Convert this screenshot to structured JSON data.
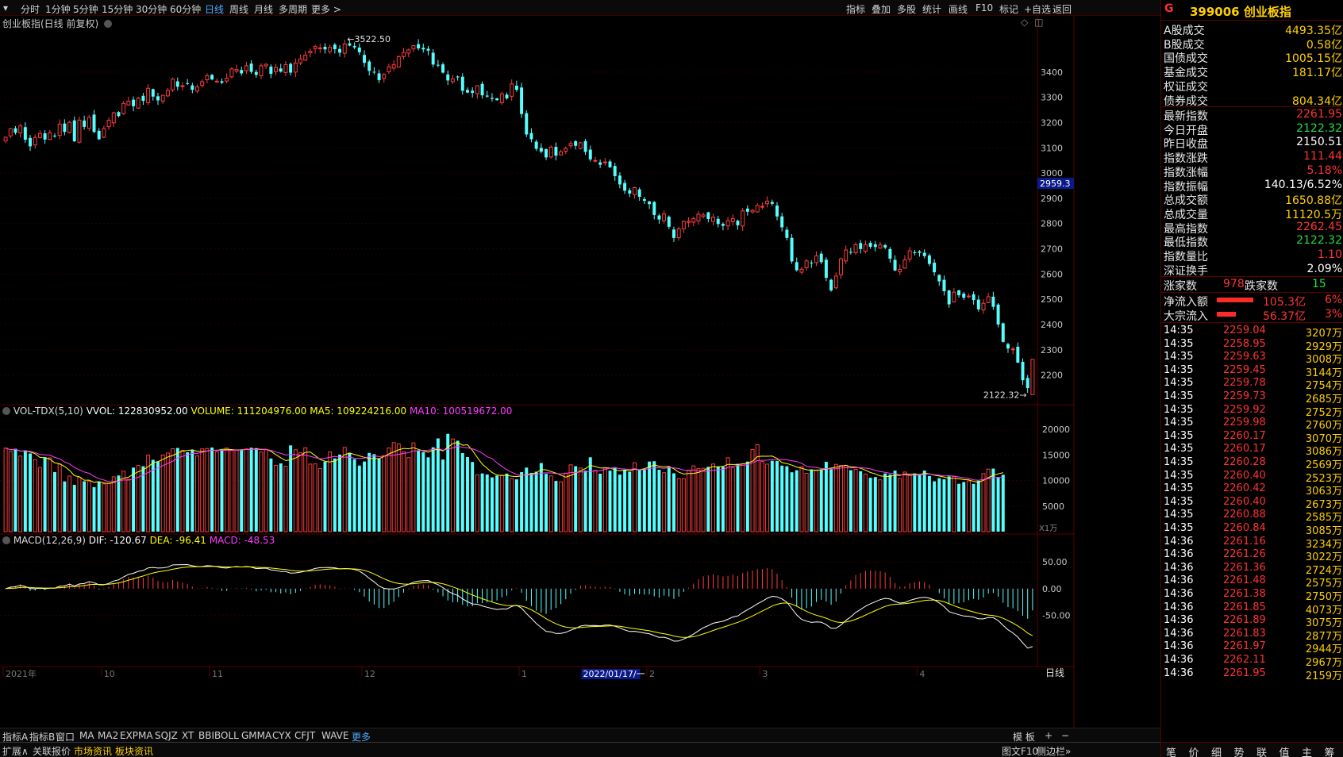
{
  "toolbar": {
    "timeframes": [
      "分时",
      "1分钟",
      "5分钟",
      "15分钟",
      "30分钟",
      "60分钟",
      "日线",
      "周线",
      "月线",
      "多周期",
      "更多 >"
    ],
    "active_timeframe": "日线",
    "tools": [
      "指标",
      "叠加",
      "多股",
      "统计",
      "画线",
      "F10",
      "标记",
      "+自选",
      "返回"
    ]
  },
  "chart_header": {
    "title": "创业板指(日线 前复权)"
  },
  "chart_data": [
    {
      "type": "candlestick",
      "title": "创业板指(日线 前复权)",
      "y_ticks": [
        3400,
        3300,
        3200,
        3100,
        3000,
        2900,
        2800,
        2700,
        2600,
        2500,
        2400,
        2300,
        2200
      ],
      "ylim": [
        2120,
        3560
      ],
      "current_price_tag": "2959.3",
      "annotations": {
        "high_label": "3522.50",
        "low_label": "2122.32"
      },
      "x_labels": [
        {
          "index": 0,
          "label": "2021年"
        },
        {
          "index": 20,
          "label": "10"
        },
        {
          "index": 42,
          "label": "11"
        },
        {
          "index": 73,
          "label": "12"
        },
        {
          "index": 105,
          "label": "1"
        },
        {
          "index": 118,
          "label": "2022/01/17/一"
        },
        {
          "index": 131,
          "label": "2"
        },
        {
          "index": 154,
          "label": "3"
        },
        {
          "index": 186,
          "label": "4"
        }
      ],
      "closes": [
        3142,
        3176,
        3160,
        3187,
        3132,
        3106,
        3141,
        3157,
        3133,
        3159,
        3147,
        3194,
        3163,
        3201,
        3126,
        3210,
        3183,
        3221,
        3163,
        3134,
        3176,
        3209,
        3239,
        3226,
        3276,
        3285,
        3265,
        3297,
        3286,
        3336,
        3303,
        3288,
        3308,
        3328,
        3372,
        3342,
        3346,
        3353,
        3330,
        3341,
        3362,
        3386,
        3371,
        3364,
        3358,
        3376,
        3413,
        3410,
        3395,
        3425,
        3401,
        3389,
        3425,
        3431,
        3393,
        3419,
        3402,
        3430,
        3398,
        3436,
        3452,
        3467,
        3483,
        3501,
        3496,
        3490,
        3498,
        3491,
        3477,
        3512,
        3505,
        3498,
        3479,
        3437,
        3405,
        3401,
        3368,
        3391,
        3421,
        3429,
        3461,
        3478,
        3488,
        3505,
        3494,
        3490,
        3485,
        3430,
        3429,
        3398,
        3367,
        3373,
        3379,
        3326,
        3319,
        3318,
        3346,
        3308,
        3303,
        3294,
        3289,
        3314,
        3296,
        3353,
        3330,
        3234,
        3153,
        3134,
        3096,
        3085,
        3062,
        3103,
        3069,
        3084,
        3098,
        3117,
        3108,
        3120,
        3084,
        3054,
        3050,
        3033,
        3044,
        3023,
        2988,
        2955,
        2930,
        2919,
        2942,
        2906,
        2890,
        2877,
        2834,
        2816,
        2838,
        2787,
        2743,
        2779,
        2808,
        2809,
        2820,
        2837,
        2834,
        2818,
        2825,
        2798,
        2791,
        2811,
        2820,
        2793,
        2850,
        2847,
        2852,
        2872,
        2868,
        2889,
        2878,
        2828,
        2785,
        2743,
        2650,
        2615,
        2619,
        2652,
        2644,
        2672,
        2647,
        2585,
        2535,
        2592,
        2660,
        2695,
        2686,
        2716,
        2699,
        2716,
        2708,
        2707,
        2715,
        2705,
        2661,
        2614,
        2618,
        2656,
        2692,
        2683,
        2684,
        2671,
        2640,
        2607,
        2571,
        2532,
        2480,
        2528,
        2516,
        2506,
        2513,
        2497,
        2460,
        2484,
        2510,
        2470,
        2400,
        2331,
        2305,
        2303,
        2249,
        2179,
        2148,
        2262
      ],
      "volume_panel": {
        "title": "VOL-TDX(5,10)",
        "vvol_label": "VVOL: 122830952.00",
        "volume_label": "VOLUME: 111204976.00",
        "ma5_label": "MA5: 109224216.00",
        "ma10_label": "MA10: 100519672.00",
        "y_ticks": [
          20000,
          15000,
          10000,
          5000
        ],
        "unit": "X1万",
        "values": [
          16340,
          15680,
          16210,
          14780,
          15900,
          15290,
          14080,
          12520,
          14560,
          14430,
          11650,
          13200,
          9820,
          10870,
          9150,
          10640,
          9850,
          9870,
          8710,
          9790,
          9340,
          9440,
          10720,
          10980,
          11830,
          10250,
          12520,
          12940,
          12790,
          14960,
          14040,
          13760,
          14980,
          15380,
          16210,
          16370,
          15910,
          15510,
          16000,
          14800,
          16190,
          16260,
          16460,
          15630,
          15930,
          16350,
          15870,
          16000,
          15990,
          16170,
          16410,
          16330,
          15560,
          16030,
          14300,
          12980,
          13340,
          12790,
          16870,
          16010,
          15420,
          16390,
          13210,
          13250,
          12350,
          13700,
          15600,
          14320,
          15070,
          16470,
          15430,
          14180,
          12920,
          13710,
          15400,
          15150,
          14220,
          14880,
          16360,
          17400,
          17150,
          15620,
          14470,
          17350,
          15830,
          15540,
          14530,
          16490,
          18230,
          14110,
          19130,
          18120,
          17780,
          15360,
          14590,
          13620,
          11110,
          11380,
          11180,
          10610,
          10960,
          10940,
          11350,
          10350,
          10230,
          11630,
          12520,
          11470,
          11720,
          13410,
          11300,
          10900,
          9910,
          9730,
          11440,
          13060,
          12800,
          12440,
          11930,
          14540,
          11970,
          11330,
          12530,
          11930,
          12600,
          11150,
          12060,
          11690,
          13470,
          12110,
          12240,
          13710,
          13770,
          12100,
          11530,
          12660,
          11410,
          10390,
          10370,
          11930,
          12860,
          12350,
          12390,
          12680,
          13230,
          12750,
          12700,
          14450,
          12500,
          13260,
          13290,
          13700,
          16050,
          17000,
          13730,
          13200,
          13860,
          13830,
          12910,
          12790,
          11610,
          12000,
          12680,
          11410,
          12180,
          11920,
          12200,
          13650,
          12170,
          13160,
          12930,
          12930,
          12030,
          12190,
          11810,
          11270,
          10540,
          10670,
          10140,
          11380,
          11160,
          11930,
          10390,
          11660,
          10940,
          11370,
          11280,
          11950,
          10880,
          9850,
          10460,
          10240,
          10810,
          10790,
          9360,
          9700,
          9900,
          9340,
          9950,
          11340,
          12230,
          12330,
          10670,
          11120
        ]
      },
      "macd_panel": {
        "title": "MACD(12,26,9)",
        "dif_label": "DIF: -120.67",
        "dea_label": "DEA: -96.41",
        "macd_label": "MACD: -48.53",
        "y_ticks": [
          "50.00",
          "0.00",
          "-50.00"
        ]
      },
      "colors": {
        "up": "#ff3c3c",
        "down": "#54ffff",
        "ma5": "#ffff00",
        "ma10": "#ff3cff",
        "dif": "#ffffff",
        "dea": "#ffff00"
      }
    }
  ],
  "stock": {
    "flag": "G",
    "code_name": "399006 创业板指"
  },
  "market_stats": [
    {
      "label": "A股成交",
      "value": "4493.35亿",
      "color": "y"
    },
    {
      "label": "B股成交",
      "value": "0.58亿",
      "color": "y"
    },
    {
      "label": "国债成交",
      "value": "1005.15亿",
      "color": "y"
    },
    {
      "label": "基金成交",
      "value": "181.17亿",
      "color": "y"
    },
    {
      "label": "权证成交",
      "value": "",
      "color": "y"
    },
    {
      "label": "债券成交",
      "value": "804.34亿",
      "color": "y"
    }
  ],
  "quote_stats": [
    {
      "label": "最新指数",
      "value": "2261.95",
      "color": "r"
    },
    {
      "label": "今日开盘",
      "value": "2122.32",
      "color": "g"
    },
    {
      "label": "昨日收盘",
      "value": "2150.51",
      "color": "w"
    },
    {
      "label": "指数涨跌",
      "value": "111.44",
      "color": "r"
    },
    {
      "label": "指数涨幅",
      "value": "5.18%",
      "color": "r"
    },
    {
      "label": "指数振幅",
      "value": "140.13/6.52%",
      "color": "w"
    },
    {
      "label": "总成交额",
      "value": "1650.88亿",
      "color": "y"
    },
    {
      "label": "总成交量",
      "value": "11120.5万",
      "color": "y"
    },
    {
      "label": "最高指数",
      "value": "2262.45",
      "color": "r"
    },
    {
      "label": "最低指数",
      "value": "2122.32",
      "color": "g"
    },
    {
      "label": "指数量比",
      "value": "1.10",
      "color": "r"
    },
    {
      "label": "深证换手",
      "value": "2.09%",
      "color": "w"
    }
  ],
  "breadth": {
    "up_label": "涨家数",
    "up_value": "978",
    "down_label": "跌家数",
    "down_value": "15"
  },
  "flows": [
    {
      "label": "净流入额",
      "value": "105.3亿",
      "pct": "6%"
    },
    {
      "label": "大宗流入",
      "value": "56.37亿",
      "pct": "3%"
    }
  ],
  "ticks": [
    {
      "time": "14:35",
      "price": "2259.04",
      "vol": "3207万"
    },
    {
      "time": "14:35",
      "price": "2258.95",
      "vol": "2929万"
    },
    {
      "time": "14:35",
      "price": "2259.63",
      "vol": "3008万"
    },
    {
      "time": "14:35",
      "price": "2259.45",
      "vol": "3144万"
    },
    {
      "time": "14:35",
      "price": "2259.78",
      "vol": "2754万"
    },
    {
      "time": "14:35",
      "price": "2259.73",
      "vol": "2685万"
    },
    {
      "time": "14:35",
      "price": "2259.92",
      "vol": "2752万"
    },
    {
      "time": "14:35",
      "price": "2259.98",
      "vol": "2760万"
    },
    {
      "time": "14:35",
      "price": "2260.17",
      "vol": "3070万"
    },
    {
      "time": "14:35",
      "price": "2260.17",
      "vol": "3086万"
    },
    {
      "time": "14:35",
      "price": "2260.28",
      "vol": "2569万"
    },
    {
      "time": "14:35",
      "price": "2260.40",
      "vol": "2523万"
    },
    {
      "time": "14:35",
      "price": "2260.42",
      "vol": "3063万"
    },
    {
      "time": "14:35",
      "price": "2260.40",
      "vol": "2673万"
    },
    {
      "time": "14:35",
      "price": "2260.88",
      "vol": "2585万"
    },
    {
      "time": "14:35",
      "price": "2260.84",
      "vol": "3085万"
    },
    {
      "time": "14:36",
      "price": "2261.16",
      "vol": "3234万"
    },
    {
      "time": "14:36",
      "price": "2261.26",
      "vol": "3022万"
    },
    {
      "time": "14:36",
      "price": "2261.36",
      "vol": "2724万"
    },
    {
      "time": "14:36",
      "price": "2261.48",
      "vol": "2575万"
    },
    {
      "time": "14:36",
      "price": "2261.38",
      "vol": "2750万"
    },
    {
      "time": "14:36",
      "price": "2261.85",
      "vol": "4073万"
    },
    {
      "time": "14:36",
      "price": "2261.89",
      "vol": "3075万"
    },
    {
      "time": "14:36",
      "price": "2261.83",
      "vol": "2877万"
    },
    {
      "time": "14:36",
      "price": "2261.97",
      "vol": "2944万"
    },
    {
      "time": "14:36",
      "price": "2262.11",
      "vol": "2967万"
    },
    {
      "time": "14:36",
      "price": "2261.95",
      "vol": "2159万"
    }
  ],
  "indicator_tabs": [
    "指标A",
    "指标B",
    "窗口",
    "MA",
    "MA2",
    "EXPMA",
    "SQJZ",
    "XT",
    "BBIBOLL",
    "GMMA",
    "CYX",
    "CFJT",
    "WAVE",
    "更多"
  ],
  "active_indicator_tab": "更多",
  "template_label": "模 板",
  "zoom_in": "+",
  "zoom_out": "−",
  "period_corner": "日线",
  "bottom_tabs": [
    {
      "label": "扩展∧",
      "hl": false
    },
    {
      "label": "关联报价",
      "hl": false
    },
    {
      "label": "市场资讯",
      "hl": true
    },
    {
      "label": "板块资讯",
      "hl": true
    }
  ],
  "bottom_right": [
    "图文F10",
    "侧边栏»"
  ],
  "right_footer_tabs": [
    "笔",
    "价",
    "细",
    "势",
    "联",
    "值",
    "主",
    "筹"
  ]
}
